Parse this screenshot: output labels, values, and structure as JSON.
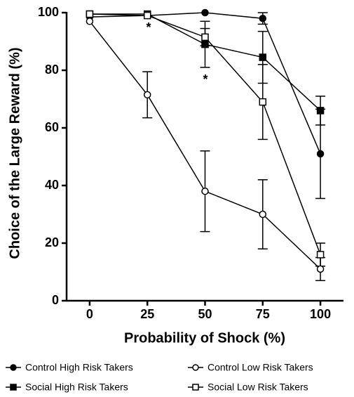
{
  "chart_data": {
    "type": "line",
    "x_label": "Probability of Shock (%)",
    "y_label": "Choice of the Large Reward (%)",
    "x": [
      0,
      25,
      50,
      75,
      100
    ],
    "xlim": [
      -10,
      110
    ],
    "xticks": [
      0,
      25,
      50,
      75,
      100
    ],
    "ylim": [
      0,
      100
    ],
    "yticks": [
      0,
      20,
      40,
      60,
      80,
      100
    ],
    "grid": false,
    "series": [
      {
        "name": "Control High Risk Takers",
        "color": "#000000",
        "marker": "circle",
        "filled": true,
        "values": [
          98.5,
          99,
          100,
          98,
          51
        ],
        "errors": [
          null,
          null,
          null,
          2,
          15.5
        ]
      },
      {
        "name": "Control Low Risk Takers",
        "color": "#000000",
        "marker": "circle",
        "filled": false,
        "values": [
          97,
          71.5,
          38,
          30,
          11
        ],
        "errors": [
          null,
          8,
          14,
          12,
          4
        ]
      },
      {
        "name": "Social High Risk Takers",
        "color": "#000000",
        "marker": "square",
        "filled": true,
        "values": [
          99.5,
          99.5,
          89,
          84.5,
          66
        ],
        "errors": [
          null,
          null,
          8,
          9,
          5
        ]
      },
      {
        "name": "Social Low Risk Takers",
        "color": "#000000",
        "marker": "square",
        "filled": false,
        "values": [
          99.5,
          99,
          91.5,
          69,
          16
        ],
        "errors": [
          null,
          null,
          3,
          13,
          4
        ]
      }
    ],
    "annotations": [
      {
        "text": "*"
      },
      {
        "text": "*"
      }
    ]
  }
}
